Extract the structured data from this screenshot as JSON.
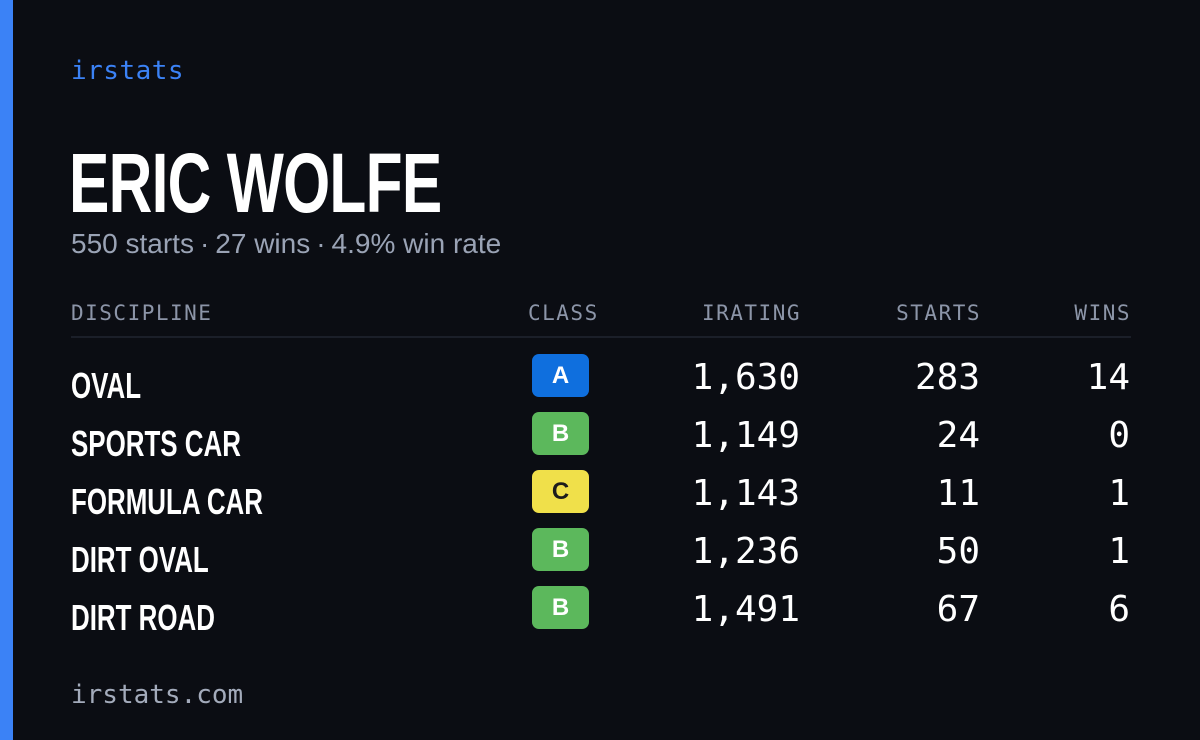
{
  "brand": "irstats",
  "driver": {
    "name": "ERIC WOLFE",
    "starts_text": "550 starts",
    "wins_text": "27 wins",
    "win_rate_text": "4.9% win rate",
    "separator": "·"
  },
  "table": {
    "headers": {
      "discipline": "DISCIPLINE",
      "class": "CLASS",
      "irating": "IRATING",
      "starts": "STARTS",
      "wins": "WINS"
    },
    "rows": [
      {
        "discipline": "OVAL",
        "class": "A",
        "class_color": "#0f6fde",
        "class_text_color": "#ffffff",
        "irating": "1,630",
        "starts": "283",
        "wins": "14"
      },
      {
        "discipline": "SPORTS CAR",
        "class": "B",
        "class_color": "#5cb85c",
        "class_text_color": "#ffffff",
        "irating": "1,149",
        "starts": "24",
        "wins": "0"
      },
      {
        "discipline": "FORMULA CAR",
        "class": "C",
        "class_color": "#f0e04a",
        "class_text_color": "#1c1c1c",
        "irating": "1,143",
        "starts": "11",
        "wins": "1"
      },
      {
        "discipline": "DIRT OVAL",
        "class": "B",
        "class_color": "#5cb85c",
        "class_text_color": "#ffffff",
        "irating": "1,236",
        "starts": "50",
        "wins": "1"
      },
      {
        "discipline": "DIRT ROAD",
        "class": "B",
        "class_color": "#5cb85c",
        "class_text_color": "#ffffff",
        "irating": "1,491",
        "starts": "67",
        "wins": "6"
      }
    ]
  },
  "footer": "irstats.com",
  "colors": {
    "accent": "#3b82f6",
    "background": "#0b0d13"
  }
}
